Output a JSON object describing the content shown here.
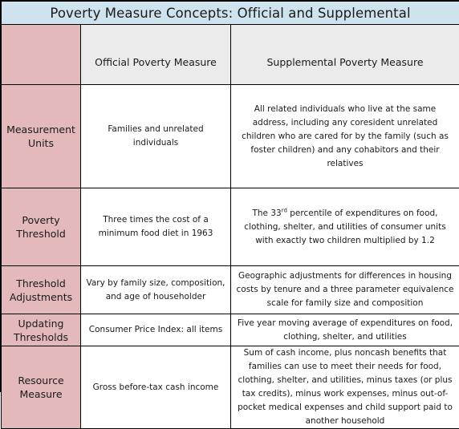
{
  "title": "Poverty Measure Concepts: Official and Supplemental",
  "columns": {
    "official": "Official Poverty Measure",
    "supplemental": "Supplemental  Poverty Measure"
  },
  "rows": [
    {
      "label": "Measurement Units",
      "official": "Families and unrelated individuals",
      "supplemental": "All related individuals who live at the same address, including any coresident unrelated children who are cared for by the family (such as foster children) and any cohabitors and their relatives"
    },
    {
      "label": "Poverty Threshold",
      "official": "Three times the cost of a minimum food diet in 1963",
      "supplemental_pre": "The 33",
      "supplemental_sup": "rd",
      "supplemental_post": " percentile of expenditures on food, clothing, shelter, and utilities of consumer units with exactly two children multiplied by 1.2"
    },
    {
      "label": "Threshold Adjustments",
      "official": "Vary by family size, composition, and age of householder",
      "supplemental": "Geographic adjustments for differences in housing costs by tenure and a three parameter equivalence scale for family size  and composition"
    },
    {
      "label": "Updating Thresholds",
      "official": "Consumer Price Index: all items",
      "supplemental": "Five year moving average of expenditures on food, clothing, shelter, and utilities"
    },
    {
      "label": "Resource Measure",
      "official": "Gross before-tax cash income",
      "supplemental": "Sum of cash income, plus noncash benefits that families can use to meet their needs for food, clothing, shelter, and utilities, minus taxes (or plus tax credits), minus work expenses, minus out-of-pocket medical expenses and child support paid to another household"
    }
  ],
  "colors": {
    "title_bg": "#cfe3ef",
    "header_bg": "#ebebeb",
    "label_bg": "#e3b9bb",
    "cell_bg": "#ffffff"
  }
}
